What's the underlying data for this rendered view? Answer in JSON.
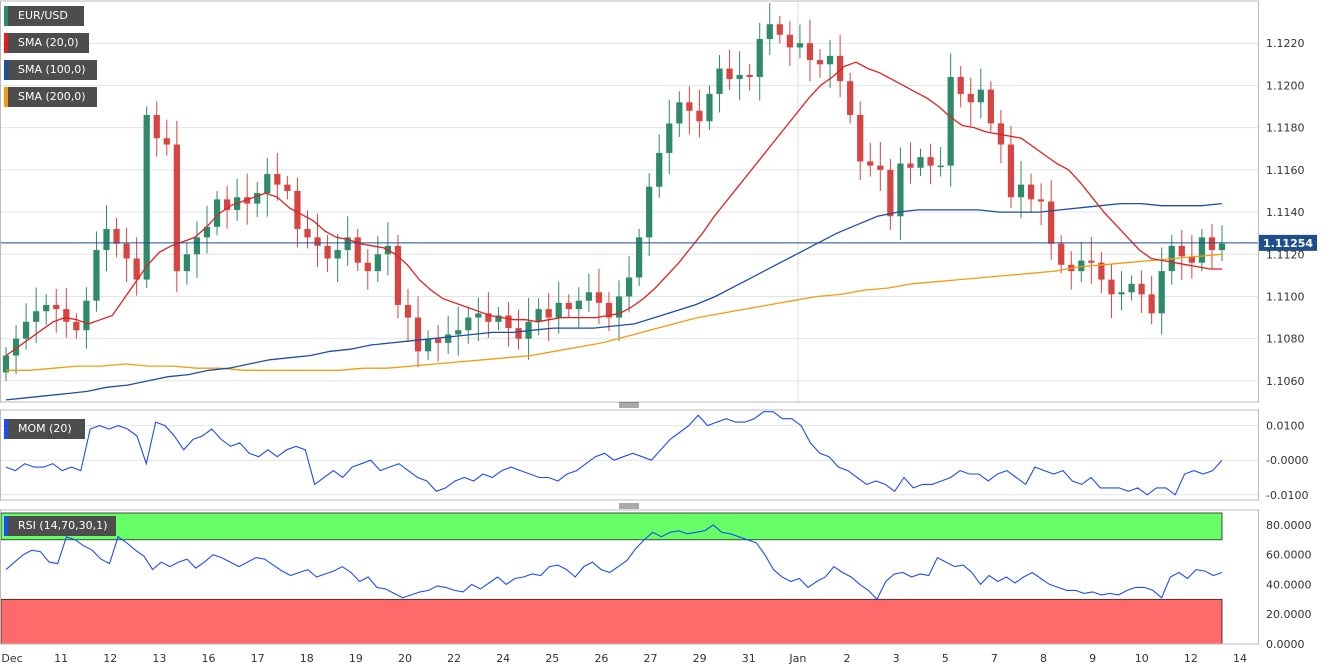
{
  "chart_data": [
    {
      "type": "candlestick",
      "instrument": "EUR/USD",
      "indicators": [
        {
          "name": "SMA (20,0)",
          "color": "#e02020"
        },
        {
          "name": "SMA (100,0)",
          "color": "#1f4ea0"
        },
        {
          "name": "SMA (200,0)",
          "color": "#f39c12"
        }
      ],
      "last_price": "1.11254",
      "last_price_value": 1.11254,
      "ylim": [
        1.105,
        1.124
      ],
      "yticks": [
        "1.1060",
        "1.1080",
        "1.1100",
        "1.1120",
        "1.1140",
        "1.1160",
        "1.1180",
        "1.1200",
        "1.1220"
      ],
      "x_labels": [
        "Dec",
        "11",
        "12",
        "13",
        "16",
        "17",
        "18",
        "19",
        "20",
        "22",
        "24",
        "25",
        "26",
        "27",
        "29",
        "31",
        "Jan",
        "2",
        "3",
        "5",
        "7",
        "8",
        "9",
        "10",
        "12",
        "14"
      ],
      "close": [
        1.1072,
        1.108,
        1.1088,
        1.1093,
        1.1096,
        1.1094,
        1.1088,
        1.1084,
        1.1098,
        1.1122,
        1.1132,
        1.1125,
        1.1118,
        1.1108,
        1.1186,
        1.1175,
        1.1172,
        1.1112,
        1.112,
        1.1128,
        1.1133,
        1.1146,
        1.1141,
        1.1147,
        1.1144,
        1.1149,
        1.1158,
        1.1153,
        1.115,
        1.1132,
        1.1128,
        1.1124,
        1.1118,
        1.1122,
        1.1128,
        1.1116,
        1.1112,
        1.112,
        1.1124,
        1.1096,
        1.109,
        1.1074,
        1.108,
        1.1078,
        1.1082,
        1.1084,
        1.109,
        1.1092,
        1.1088,
        1.1091,
        1.1085,
        1.108,
        1.1088,
        1.1094,
        1.109,
        1.1097,
        1.1094,
        1.1098,
        1.1102,
        1.1097,
        1.109,
        1.11,
        1.1109,
        1.1128,
        1.1152,
        1.1168,
        1.1182,
        1.1192,
        1.1188,
        1.1183,
        1.1196,
        1.1208,
        1.1203,
        1.1205,
        1.1204,
        1.1222,
        1.1229,
        1.1224,
        1.1218,
        1.122,
        1.1212,
        1.121,
        1.1214,
        1.1202,
        1.1186,
        1.1164,
        1.1162,
        1.116,
        1.1138,
        1.1163,
        1.1161,
        1.1166,
        1.1162,
        1.1162,
        1.1204,
        1.1196,
        1.1192,
        1.1198,
        1.1182,
        1.1172,
        1.1147,
        1.1153,
        1.1146,
        1.1145,
        1.1125,
        1.1115,
        1.1112,
        1.1117,
        1.1116,
        1.1108,
        1.1101,
        1.1102,
        1.1106,
        1.1101,
        1.1092,
        1.1112,
        1.1124,
        1.1119,
        1.1116,
        1.1128,
        1.1122,
        1.1125
      ],
      "sma20": [
        1.1072,
        1.1076,
        1.108,
        1.1084,
        1.1088,
        1.109,
        1.1089,
        1.1087,
        1.1089,
        1.1091,
        1.1099,
        1.1107,
        1.1115,
        1.1121,
        1.1124,
        1.1126,
        1.1128,
        1.1133,
        1.1139,
        1.1143,
        1.1145,
        1.1147,
        1.1149,
        1.1147,
        1.1142,
        1.1139,
        1.1136,
        1.1131,
        1.1128,
        1.1127,
        1.1125,
        1.1124,
        1.1123,
        1.112,
        1.1115,
        1.1108,
        1.1103,
        1.1099,
        1.1097,
        1.1095,
        1.1093,
        1.1091,
        1.109,
        1.1089,
        1.1089,
        1.1088,
        1.1089,
        1.109,
        1.109,
        1.109,
        1.109,
        1.1091,
        1.1092,
        1.1095,
        1.1099,
        1.1104,
        1.111,
        1.1116,
        1.1123,
        1.113,
        1.1138,
        1.1145,
        1.1152,
        1.1159,
        1.1166,
        1.1173,
        1.118,
        1.1187,
        1.1194,
        1.12,
        1.1204,
        1.1209,
        1.1211,
        1.1208,
        1.1206,
        1.1203,
        1.12,
        1.1197,
        1.1194,
        1.119,
        1.1185,
        1.1181,
        1.118,
        1.1178,
        1.1177,
        1.1176,
        1.1175,
        1.1171,
        1.1167,
        1.1163,
        1.116,
        1.1154,
        1.1147,
        1.114,
        1.1134,
        1.1128,
        1.1122,
        1.1118,
        1.1117,
        1.1116,
        1.1115,
        1.1114,
        1.1113,
        1.1113
      ],
      "sma100": [
        1.1051,
        1.1052,
        1.1053,
        1.1054,
        1.1055,
        1.1057,
        1.1058,
        1.106,
        1.1062,
        1.1063,
        1.1065,
        1.1066,
        1.1068,
        1.107,
        1.1071,
        1.1072,
        1.1074,
        1.1075,
        1.1077,
        1.1078,
        1.1079,
        1.108,
        1.1081,
        1.1082,
        1.1083,
        1.1083,
        1.1084,
        1.1085,
        1.1085,
        1.1085,
        1.1086,
        1.1087,
        1.109,
        1.1093,
        1.1096,
        1.11,
        1.1105,
        1.111,
        1.1115,
        1.112,
        1.1125,
        1.113,
        1.1134,
        1.1138,
        1.114,
        1.1141,
        1.1141,
        1.1141,
        1.1141,
        1.114,
        1.114,
        1.114,
        1.1141,
        1.1142,
        1.1143,
        1.1144,
        1.1144,
        1.1143,
        1.1143,
        1.1143,
        1.1144
      ],
      "sma200": [
        1.1065,
        1.1065,
        1.1066,
        1.1067,
        1.1067,
        1.1068,
        1.1067,
        1.1067,
        1.1066,
        1.1066,
        1.1065,
        1.1065,
        1.1065,
        1.1065,
        1.1065,
        1.1066,
        1.1066,
        1.1067,
        1.1068,
        1.1069,
        1.107,
        1.1071,
        1.1072,
        1.1074,
        1.1076,
        1.1078,
        1.1081,
        1.1084,
        1.1087,
        1.109,
        1.1092,
        1.1094,
        1.1096,
        1.1098,
        1.11,
        1.1101,
        1.1103,
        1.1104,
        1.1106,
        1.1107,
        1.1108,
        1.1109,
        1.111,
        1.1111,
        1.1112,
        1.1114,
        1.1115,
        1.1116,
        1.1117,
        1.1118,
        1.1119,
        1.112
      ],
      "colors": {
        "up": "#2f8a6a",
        "down": "#d64541",
        "price_line": "#1f4e8c",
        "grid": "#e4e4e4"
      }
    },
    {
      "type": "line",
      "indicator": "MOM (20)",
      "color": "#1f4ef0",
      "ylim": [
        -0.0115,
        0.0145
      ],
      "yticks": [
        "0.0100",
        "-0.0000",
        "-0.0100"
      ],
      "values": [
        -0.002,
        -0.003,
        -0.001,
        -0.002,
        -0.002,
        -0.001,
        -0.003,
        -0.002,
        -0.003,
        0.009,
        0.01,
        0.009,
        0.01,
        0.009,
        0.007,
        -0.001,
        0.011,
        0.01,
        0.007,
        0.003,
        0.006,
        0.007,
        0.009,
        0.006,
        0.004,
        0.005,
        0.002,
        0.001,
        0.003,
        0.001,
        0.003,
        0.004,
        0.003,
        -0.007,
        -0.005,
        -0.003,
        -0.005,
        -0.002,
        -0.001,
        0.0,
        -0.003,
        -0.002,
        -0.001,
        -0.003,
        -0.005,
        -0.006,
        -0.009,
        -0.008,
        -0.006,
        -0.005,
        -0.006,
        -0.004,
        -0.005,
        -0.003,
        -0.002,
        -0.003,
        -0.004,
        -0.005,
        -0.005,
        -0.006,
        -0.004,
        -0.003,
        -0.001,
        0.001,
        0.002,
        0.0,
        0.001,
        0.002,
        0.001,
        0.0,
        0.003,
        0.006,
        0.008,
        0.01,
        0.013,
        0.01,
        0.011,
        0.012,
        0.011,
        0.011,
        0.012,
        0.014,
        0.014,
        0.012,
        0.012,
        0.01,
        0.005,
        0.002,
        0.001,
        -0.002,
        -0.003,
        -0.005,
        -0.007,
        -0.006,
        -0.007,
        -0.009,
        -0.005,
        -0.008,
        -0.007,
        -0.007,
        -0.006,
        -0.005,
        -0.003,
        -0.004,
        -0.004,
        -0.006,
        -0.004,
        -0.003,
        -0.005,
        -0.007,
        -0.002,
        -0.003,
        -0.004,
        -0.003,
        -0.006,
        -0.007,
        -0.005,
        -0.008,
        -0.008,
        -0.008,
        -0.009,
        -0.008,
        -0.01,
        -0.008,
        -0.008,
        -0.01,
        -0.004,
        -0.003,
        -0.004,
        -0.003,
        0.0
      ]
    },
    {
      "type": "line",
      "indicator": "RSI (14,70,30,1)",
      "color": "#1f4ef0",
      "ylim": [
        0,
        90
      ],
      "yticks": [
        "80.0000",
        "60.0000",
        "40.0000",
        "20.0000",
        "0.0000"
      ],
      "overbought": 70,
      "oversold": 30,
      "zone_colors": {
        "overbought": "#66ff66",
        "oversold": "#ff6b6b"
      },
      "values": [
        50,
        55,
        60,
        63,
        62,
        55,
        54,
        72,
        70,
        66,
        63,
        57,
        54,
        72,
        68,
        63,
        59,
        50,
        55,
        52,
        55,
        57,
        51,
        55,
        60,
        58,
        55,
        52,
        55,
        58,
        57,
        53,
        49,
        46,
        48,
        50,
        45,
        47,
        49,
        52,
        48,
        42,
        45,
        38,
        37,
        34,
        31,
        33,
        35,
        36,
        39,
        38,
        36,
        35,
        40,
        37,
        41,
        45,
        40,
        44,
        45,
        47,
        46,
        52,
        53,
        50,
        45,
        52,
        55,
        50,
        48,
        52,
        56,
        64,
        70,
        75,
        72,
        75,
        76,
        74,
        75,
        76,
        80,
        75,
        74,
        72,
        70,
        68,
        60,
        50,
        45,
        42,
        44,
        38,
        42,
        45,
        52,
        48,
        45,
        40,
        36,
        30,
        42,
        47,
        48,
        45,
        47,
        46,
        58,
        55,
        52,
        53,
        48,
        40,
        46,
        42,
        45,
        41,
        45,
        48,
        44,
        40,
        38,
        36,
        36,
        34,
        35,
        33,
        34,
        33,
        36,
        38,
        38,
        36,
        31,
        45,
        48,
        44,
        50,
        49,
        46,
        48
      ]
    }
  ]
}
